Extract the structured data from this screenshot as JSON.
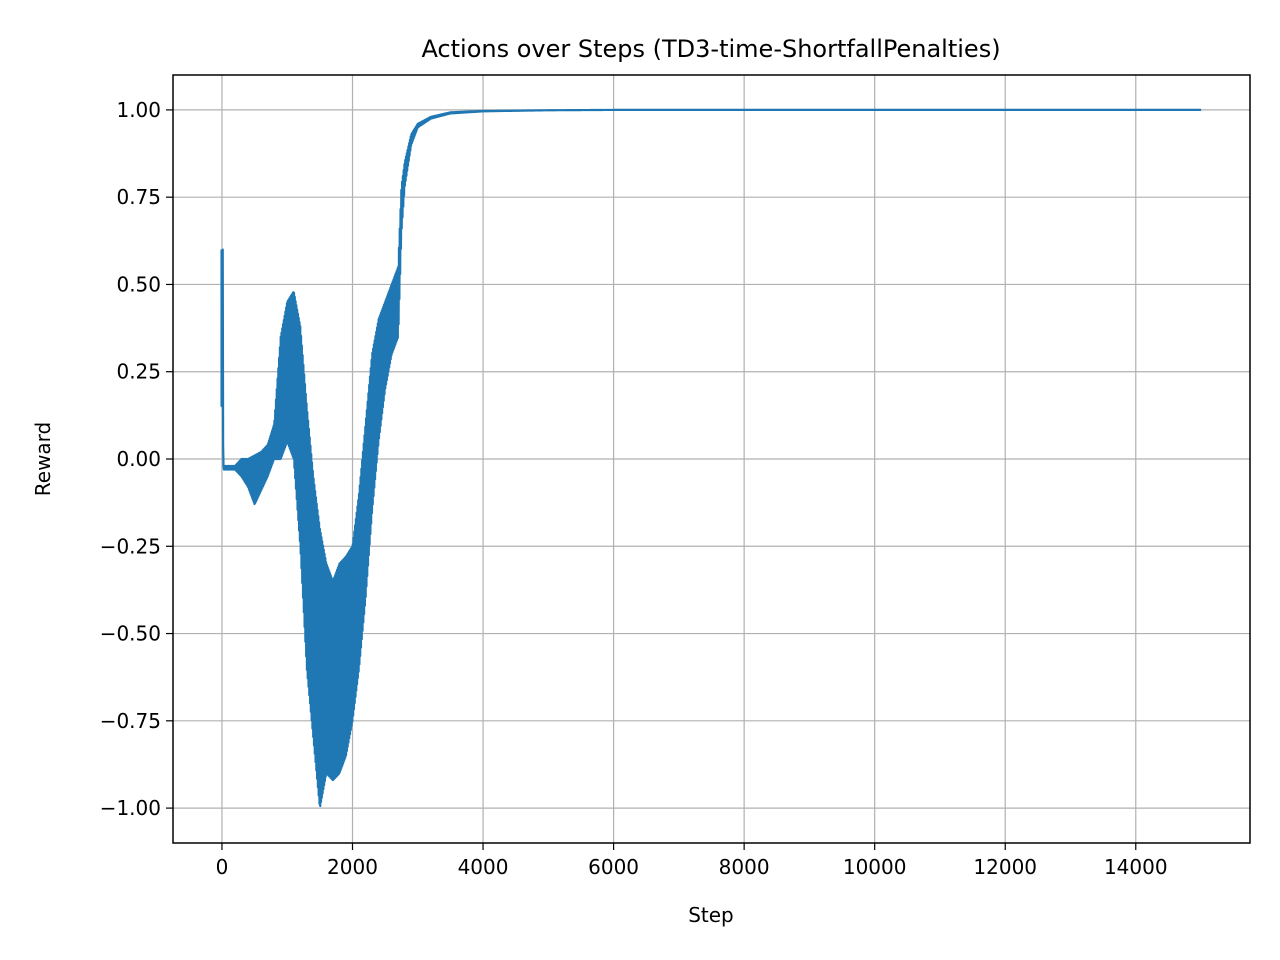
{
  "chart_data": {
    "type": "line",
    "title": "Actions over Steps (TD3-time-ShortfallPenalties)",
    "xlabel": "Step",
    "ylabel": "Reward",
    "xlim": [
      -750,
      15750
    ],
    "ylim": [
      -1.1,
      1.1
    ],
    "x_ticks": [
      0,
      2000,
      4000,
      6000,
      8000,
      10000,
      12000,
      14000
    ],
    "x_tick_labels": [
      "0",
      "2000",
      "4000",
      "6000",
      "8000",
      "10000",
      "12000",
      "14000"
    ],
    "y_ticks": [
      -1.0,
      -0.75,
      -0.5,
      -0.25,
      0.0,
      0.25,
      0.5,
      0.75,
      1.0
    ],
    "y_tick_labels": [
      "−1.00",
      "−0.75",
      "−0.50",
      "−0.25",
      "0.00",
      "0.25",
      "0.50",
      "0.75",
      "1.00"
    ],
    "grid": true,
    "series_color": "#1f77b4",
    "envelope": {
      "x": [
        0,
        5,
        10,
        15,
        20,
        50,
        100,
        200,
        300,
        400,
        500,
        600,
        700,
        800,
        900,
        1000,
        1100,
        1200,
        1300,
        1400,
        1500,
        1600,
        1700,
        1800,
        1900,
        2000,
        2100,
        2200,
        2300,
        2400,
        2500,
        2600,
        2700,
        2750,
        2800,
        2900,
        3000,
        3200,
        3500,
        4000,
        5000,
        6000,
        8000,
        15000
      ],
      "upper": [
        0.6,
        0.6,
        0.6,
        0.6,
        -0.02,
        -0.02,
        -0.02,
        -0.02,
        0.0,
        0.0,
        0.01,
        0.02,
        0.04,
        0.1,
        0.35,
        0.45,
        0.48,
        0.38,
        0.15,
        -0.05,
        -0.2,
        -0.3,
        -0.35,
        -0.3,
        -0.28,
        -0.25,
        -0.1,
        0.1,
        0.3,
        0.4,
        0.45,
        0.5,
        0.55,
        0.78,
        0.85,
        0.93,
        0.96,
        0.98,
        0.993,
        0.997,
        0.999,
        1.0,
        1.0,
        1.0
      ],
      "lower": [
        0.15,
        0.15,
        0.15,
        0.15,
        -0.03,
        -0.03,
        -0.03,
        -0.03,
        -0.05,
        -0.08,
        -0.13,
        -0.09,
        -0.05,
        0.0,
        0.0,
        0.05,
        0.0,
        -0.25,
        -0.6,
        -0.8,
        -1.0,
        -0.9,
        -0.92,
        -0.9,
        -0.85,
        -0.75,
        -0.6,
        -0.4,
        -0.15,
        0.05,
        0.2,
        0.3,
        0.35,
        0.65,
        0.78,
        0.9,
        0.95,
        0.975,
        0.99,
        0.996,
        0.999,
        1.0,
        1.0,
        1.0
      ]
    }
  }
}
